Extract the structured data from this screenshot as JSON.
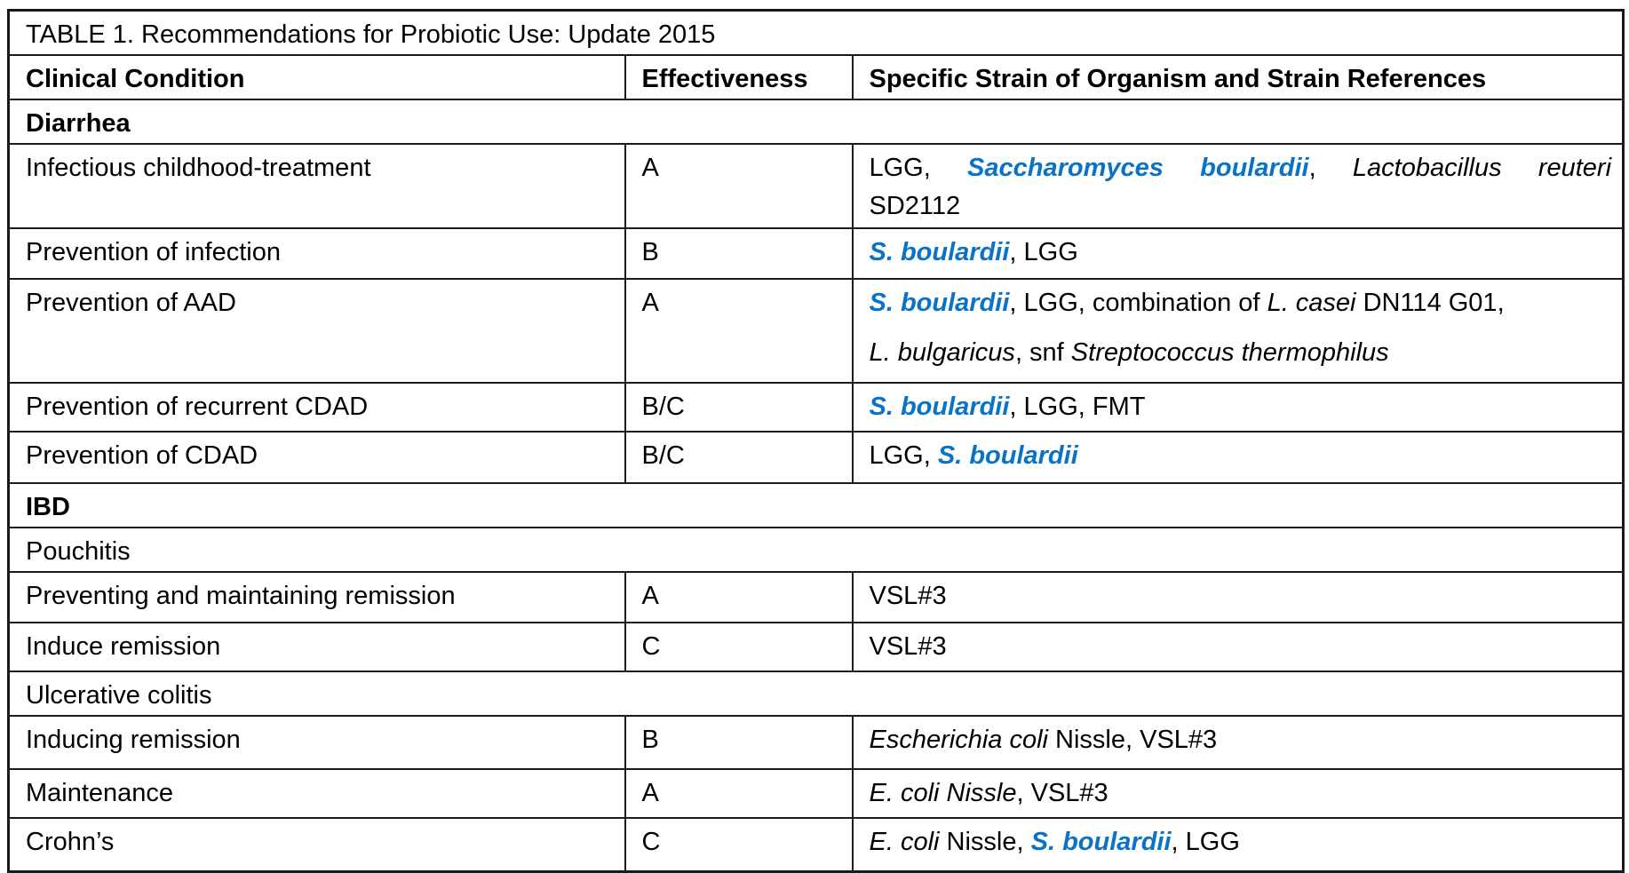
{
  "colors": {
    "accent_blue": "#0a73c8",
    "border": "#1a1a1a",
    "background": "#ffffff"
  },
  "table": {
    "title": "TABLE 1. Recommendations for Probiotic Use: Update 2015",
    "columns": [
      "Clinical Condition",
      "Effectiveness",
      "Specific Strain of Organism and Strain References"
    ],
    "rows": [
      {
        "type": "section",
        "label": "Diarrhea"
      },
      {
        "type": "data",
        "condition": "Infectious childhood-treatment",
        "effectiveness": "A",
        "strain_lines": [
          [
            {
              "text": "LGG, ",
              "style": "plain"
            },
            {
              "text": "Saccharomyces boulardii",
              "style": "blue"
            },
            {
              "text": ", ",
              "style": "plain"
            },
            {
              "text": "Lactobacillus reuteri",
              "style": "italic"
            }
          ],
          [
            {
              "text": "SD2112",
              "style": "plain"
            }
          ]
        ]
      },
      {
        "type": "data",
        "condition": "Prevention of infection",
        "effectiveness": "B",
        "strain_lines": [
          [
            {
              "text": "S. boulardii",
              "style": "blue"
            },
            {
              "text": ", LGG",
              "style": "plain"
            }
          ]
        ]
      },
      {
        "type": "data",
        "condition": "Prevention of AAD",
        "effectiveness": "A",
        "strain_lines": [
          [
            {
              "text": "S. boulardii",
              "style": "blue"
            },
            {
              "text": ", LGG, combination of ",
              "style": "plain"
            },
            {
              "text": "L. casei",
              "style": "italic"
            },
            {
              "text": " DN114 G01,",
              "style": "plain"
            }
          ],
          [
            {
              "text": "L. bulgaricus",
              "style": "italic"
            },
            {
              "text": ", snf ",
              "style": "plain"
            },
            {
              "text": "Streptococcus thermophilus",
              "style": "italic"
            }
          ]
        ]
      },
      {
        "type": "data",
        "condition": "Prevention of recurrent CDAD",
        "effectiveness": "B/C",
        "strain_lines": [
          [
            {
              "text": "S. boulardii",
              "style": "blue"
            },
            {
              "text": ", LGG, FMT",
              "style": "plain"
            }
          ]
        ]
      },
      {
        "type": "data",
        "condition": "Prevention of CDAD",
        "effectiveness": "B/C",
        "strain_lines": [
          [
            {
              "text": "LGG, ",
              "style": "plain"
            },
            {
              "text": "S. boulardii",
              "style": "blue"
            }
          ]
        ]
      },
      {
        "type": "section",
        "label": "IBD"
      },
      {
        "type": "subsection",
        "label": "Pouchitis"
      },
      {
        "type": "data",
        "condition": "Preventing and maintaining remission",
        "effectiveness": "A",
        "strain_lines": [
          [
            {
              "text": "VSL#3",
              "style": "plain"
            }
          ]
        ]
      },
      {
        "type": "data",
        "condition": "Induce remission",
        "effectiveness": "C",
        "strain_lines": [
          [
            {
              "text": "VSL#3",
              "style": "plain"
            }
          ]
        ]
      },
      {
        "type": "subsection",
        "label": "Ulcerative colitis"
      },
      {
        "type": "data",
        "condition": "Inducing remission",
        "effectiveness": "B",
        "strain_lines": [
          [
            {
              "text": "Escherichia coli",
              "style": "italic"
            },
            {
              "text": " Nissle, VSL#3",
              "style": "plain"
            }
          ]
        ]
      },
      {
        "type": "data",
        "condition": "Maintenance",
        "effectiveness": "A",
        "strain_lines": [
          [
            {
              "text": "E. coli Nissle",
              "style": "italic"
            },
            {
              "text": ", VSL#3",
              "style": "plain"
            }
          ]
        ]
      },
      {
        "type": "data",
        "condition": "Crohn’s",
        "effectiveness": "C",
        "strain_lines": [
          [
            {
              "text": "E. coli",
              "style": "italic"
            },
            {
              "text": " Nissle, ",
              "style": "plain"
            },
            {
              "text": "S. boulardii",
              "style": "blue"
            },
            {
              "text": ", LGG",
              "style": "plain"
            }
          ]
        ]
      }
    ]
  }
}
